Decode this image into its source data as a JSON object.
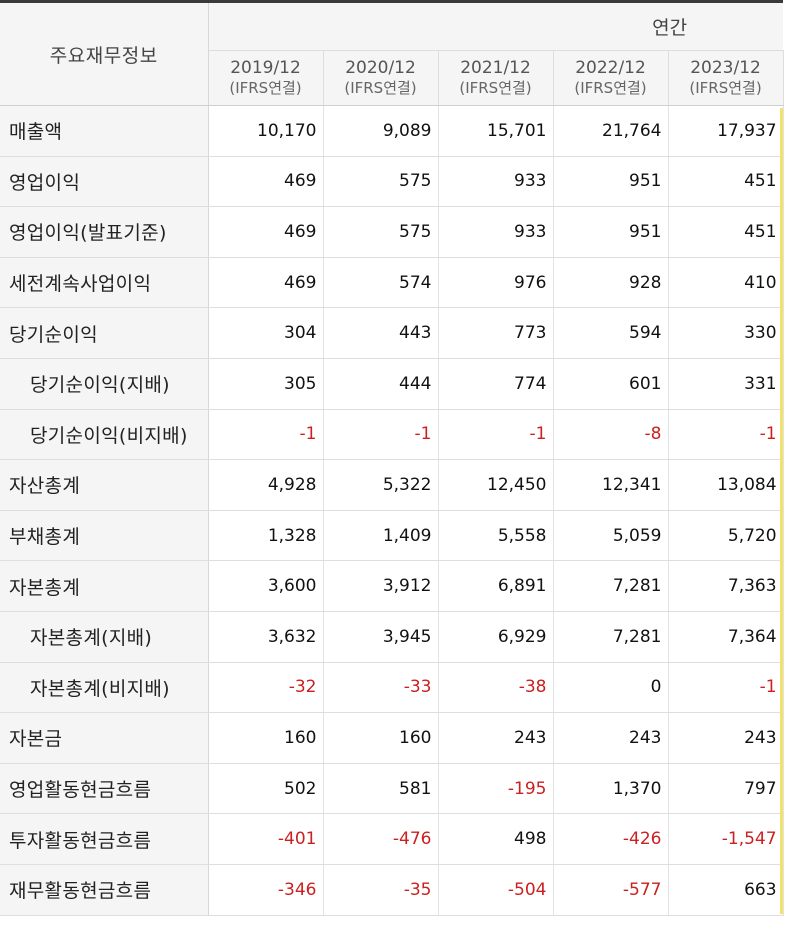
{
  "table": {
    "corner_label": "주요재무정보",
    "group_label": "연간",
    "years": [
      {
        "period": "2019/12",
        "basis": "(IFRS연결)"
      },
      {
        "period": "2020/12",
        "basis": "(IFRS연결)"
      },
      {
        "period": "2021/12",
        "basis": "(IFRS연결)"
      },
      {
        "period": "2022/12",
        "basis": "(IFRS연결)"
      },
      {
        "period": "2023/12",
        "basis": "(IFRS연결)"
      }
    ],
    "rows": [
      {
        "label": "매출액",
        "indent": false,
        "values": [
          "10,170",
          "9,089",
          "15,701",
          "21,764",
          "17,937"
        ]
      },
      {
        "label": "영업이익",
        "indent": false,
        "values": [
          "469",
          "575",
          "933",
          "951",
          "451"
        ]
      },
      {
        "label": "영업이익(발표기준)",
        "indent": false,
        "values": [
          "469",
          "575",
          "933",
          "951",
          "451"
        ]
      },
      {
        "label": "세전계속사업이익",
        "indent": false,
        "values": [
          "469",
          "574",
          "976",
          "928",
          "410"
        ]
      },
      {
        "label": "당기순이익",
        "indent": false,
        "values": [
          "304",
          "443",
          "773",
          "594",
          "330"
        ]
      },
      {
        "label": "당기순이익(지배)",
        "indent": true,
        "values": [
          "305",
          "444",
          "774",
          "601",
          "331"
        ]
      },
      {
        "label": "당기순이익(비지배)",
        "indent": true,
        "values": [
          "-1",
          "-1",
          "-1",
          "-8",
          "-1"
        ]
      },
      {
        "label": "자산총계",
        "indent": false,
        "values": [
          "4,928",
          "5,322",
          "12,450",
          "12,341",
          "13,084"
        ]
      },
      {
        "label": "부채총계",
        "indent": false,
        "values": [
          "1,328",
          "1,409",
          "5,558",
          "5,059",
          "5,720"
        ]
      },
      {
        "label": "자본총계",
        "indent": false,
        "values": [
          "3,600",
          "3,912",
          "6,891",
          "7,281",
          "7,363"
        ]
      },
      {
        "label": "자본총계(지배)",
        "indent": true,
        "values": [
          "3,632",
          "3,945",
          "6,929",
          "7,281",
          "7,364"
        ]
      },
      {
        "label": "자본총계(비지배)",
        "indent": true,
        "values": [
          "-32",
          "-33",
          "-38",
          "0",
          "-1"
        ]
      },
      {
        "label": "자본금",
        "indent": false,
        "values": [
          "160",
          "160",
          "243",
          "243",
          "243"
        ]
      },
      {
        "label": "영업활동현금흐름",
        "indent": false,
        "values": [
          "502",
          "581",
          "-195",
          "1,370",
          "797"
        ]
      },
      {
        "label": "투자활동현금흐름",
        "indent": false,
        "values": [
          "-401",
          "-476",
          "498",
          "-426",
          "-1,547"
        ]
      },
      {
        "label": "재무활동현금흐름",
        "indent": false,
        "values": [
          "-346",
          "-35",
          "-504",
          "-577",
          "663"
        ]
      }
    ]
  },
  "colors": {
    "negative": "#cc1f1f",
    "header_bg": "#f5f5f5",
    "top_border": "#3a3a3a"
  }
}
